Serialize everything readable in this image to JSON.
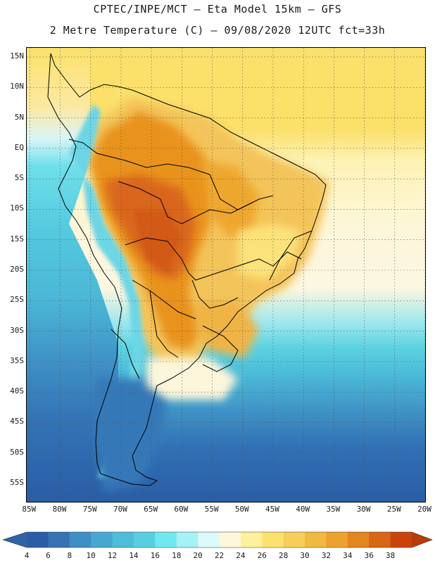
{
  "header": {
    "line1": "CPTEC/INPE/MCT –  Eta Model 15km – GFS",
    "line2": "2 Metre Temperature (C) – 09/08/2020 12UTC fct=33h"
  },
  "axes": {
    "lat_labels": [
      "15N",
      "10N",
      "5N",
      "EQ",
      "5S",
      "10S",
      "15S",
      "20S",
      "25S",
      "30S",
      "35S",
      "40S",
      "45S",
      "50S",
      "55S"
    ],
    "lat_values": [
      15,
      10,
      5,
      0,
      -5,
      -10,
      -15,
      -20,
      -25,
      -30,
      -35,
      -40,
      -45,
      -50,
      -55
    ],
    "lon_labels": [
      "85W",
      "80W",
      "75W",
      "70W",
      "65W",
      "60W",
      "55W",
      "50W",
      "45W",
      "40W",
      "35W",
      "30W",
      "25W",
      "20W"
    ],
    "lon_values": [
      -85,
      -80,
      -75,
      -70,
      -65,
      -60,
      -55,
      -50,
      -45,
      -40,
      -35,
      -30,
      -25,
      -20
    ],
    "lon_range": [
      -85.5,
      -20
    ],
    "lat_range": [
      -58,
      16.5
    ]
  },
  "colorbar": {
    "ticks": [
      "4",
      "6",
      "8",
      "10",
      "12",
      "14",
      "16",
      "18",
      "20",
      "22",
      "24",
      "26",
      "28",
      "30",
      "32",
      "34",
      "36",
      "38"
    ],
    "colors": [
      "#2a5da6",
      "#3473b5",
      "#3f8ec4",
      "#48a7d0",
      "#4fbcd9",
      "#58cfe0",
      "#6fe9ef",
      "#a5f1f6",
      "#dbf8fa",
      "#fdf7dc",
      "#fdf19d",
      "#fbe26f",
      "#f5cf58",
      "#f0b940",
      "#eda12f",
      "#e4851f",
      "#d96516",
      "#c9440c"
    ],
    "left_cap": "#2f62a8",
    "right_cap": "#b93a0a"
  }
}
